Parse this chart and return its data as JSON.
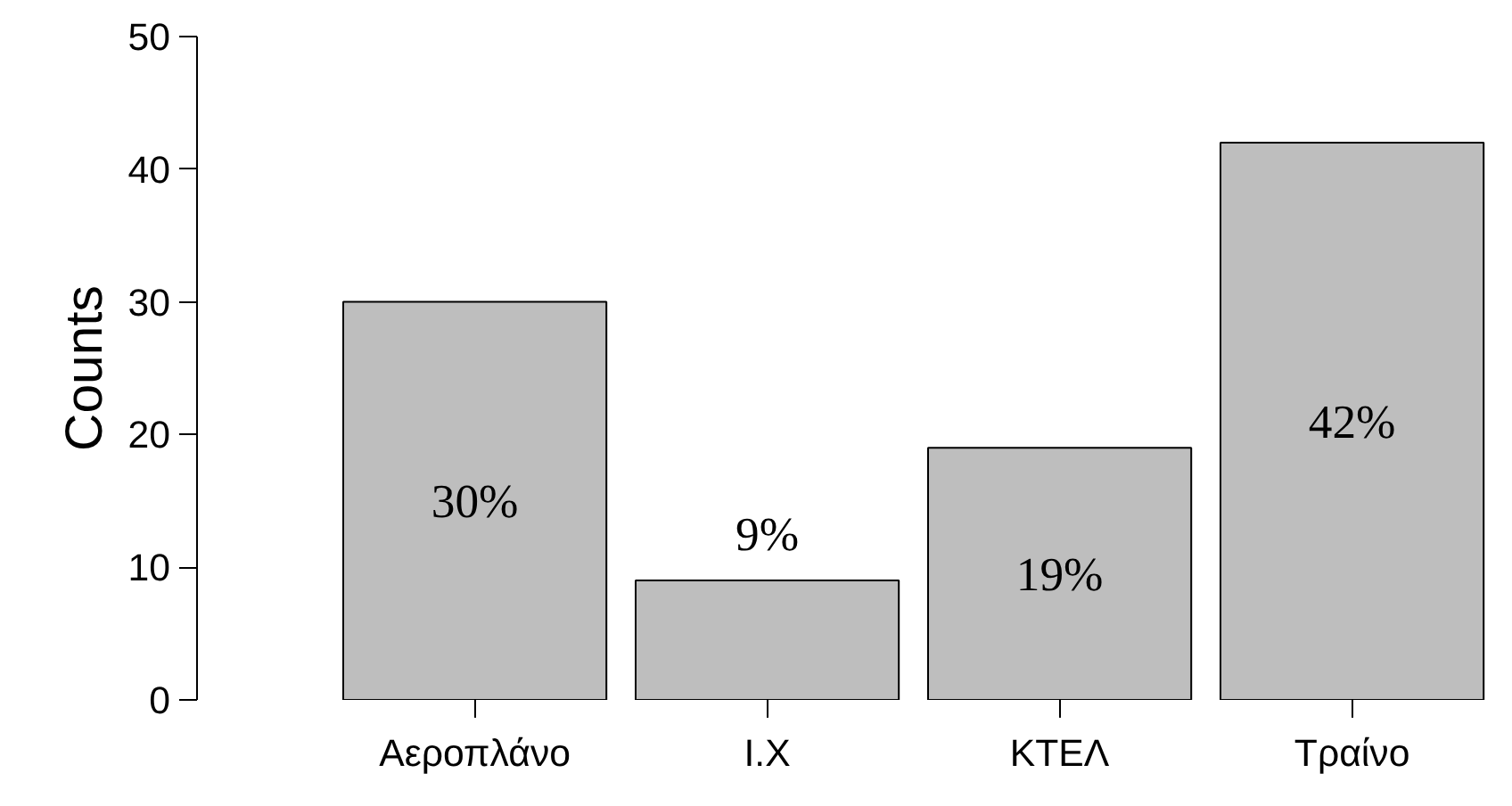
{
  "chart_data": {
    "type": "bar",
    "ylabel": "Counts",
    "categories": [
      "Αεροπλάνο",
      "Ι.Χ",
      "ΚΤΕΛ",
      "Τραίνο"
    ],
    "values": [
      30,
      9,
      19,
      42
    ],
    "value_labels": [
      "30%",
      "9%",
      "19%",
      "42%"
    ],
    "color": "#bebebe",
    "ylim": [
      0,
      50
    ],
    "yticks": [
      0,
      10,
      20,
      30,
      40,
      50
    ],
    "grid": false
  }
}
